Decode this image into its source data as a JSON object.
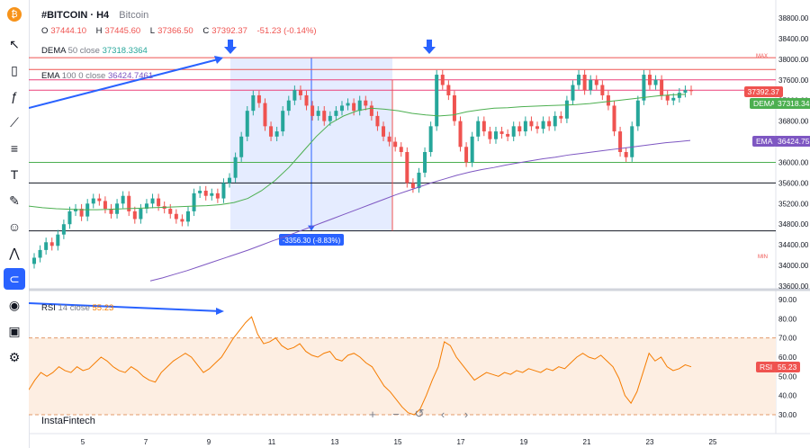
{
  "symbol": {
    "name": "#BITCOIN · H4",
    "description": "Bitcoin"
  },
  "ohlc": {
    "o_label": "O",
    "o": "37444.10",
    "h_label": "H",
    "h": "37445.60",
    "l_label": "L",
    "l": "37366.50",
    "c_label": "C",
    "c": "37392.37",
    "change": "-51.23 (-0.14%)"
  },
  "indicators": {
    "dema": {
      "label": "DEMA",
      "params": "50 close",
      "value": "37318.3364",
      "badge": "37318.34",
      "badge_label": "DEMA"
    },
    "ema": {
      "label": "EMA",
      "params": "100 0 close",
      "value": "36424.7461",
      "badge": "36424.75",
      "badge_label": "EMA"
    },
    "rsi": {
      "label": "RSI",
      "params": "14 close",
      "value": "55.23",
      "badge": "55.23",
      "badge_label": "RSI"
    }
  },
  "last_price": "37392.37",
  "measure_label": "-3356.30 (-8.83%)",
  "max_label": "MAX",
  "min_label": "MIN",
  "brand": "InstaFintech",
  "colors": {
    "up": "#26a69a",
    "down": "#ef5350",
    "dema": "#4caf50",
    "ema": "#7e57c2",
    "rsi": "#f57c00",
    "accent": "#2962ff"
  },
  "toolbar_icons": [
    "bitcoin-logo-icon",
    "cursor-icon",
    "candle-style-icon",
    "formula-icon",
    "trend-tools-icon",
    "fib-icon",
    "text-icon",
    "brush-icon",
    "emoji-icon",
    "patterns-icon",
    "magnet-icon",
    "eye-icon",
    "lock-icon",
    "settings-icon"
  ],
  "nav_icons": [
    "zoom-in-icon",
    "zoom-out-icon",
    "reset-icon",
    "scroll-left-icon",
    "scroll-right-icon"
  ],
  "chart_data": {
    "type": "candlestick",
    "price_axis": {
      "min": 33600,
      "max": 38800,
      "ticks": [
        "33600.00",
        "34000.00",
        "34400.00",
        "34800.00",
        "35200.00",
        "35600.00",
        "36000.00",
        "36400.00",
        "36800.00",
        "37200.00",
        "37600.00",
        "38000.00",
        "38400.00",
        "38800.00"
      ]
    },
    "rsi_axis": {
      "min": 30,
      "max": 90,
      "ticks": [
        "30.00",
        "40.00",
        "50.00",
        "60.00",
        "70.00",
        "80.00",
        "90.00"
      ],
      "bands": [
        30,
        70
      ]
    },
    "x_labels": [
      "5",
      "7",
      "9",
      "11",
      "13",
      "15",
      "17",
      "19",
      "21",
      "23",
      "25"
    ],
    "horizontal_levels": [
      38030,
      37800,
      37600,
      37400,
      36000,
      35600,
      34670
    ],
    "candles_close": [
      34150,
      34300,
      34450,
      34380,
      34600,
      34800,
      35050,
      35100,
      34950,
      35200,
      35300,
      35250,
      35100,
      35000,
      35200,
      35350,
      35050,
      34900,
      35100,
      35200,
      35300,
      35150,
      35100,
      35000,
      34900,
      34850,
      35050,
      35400,
      35450,
      35350,
      35400,
      35300,
      35600,
      35700,
      36100,
      36500,
      37000,
      37300,
      37150,
      36700,
      36500,
      36600,
      37000,
      37200,
      37400,
      37300,
      37100,
      36900,
      37000,
      36800,
      36900,
      37000,
      37100,
      37150,
      37000,
      37200,
      37100,
      36900,
      36700,
      36500,
      36400,
      36300,
      36200,
      35600,
      35500,
      35800,
      36200,
      36700,
      37700,
      37500,
      37300,
      36800,
      36300,
      36000,
      36500,
      36800,
      36600,
      36450,
      36600,
      36550,
      36500,
      36700,
      36600,
      36800,
      36700,
      36650,
      36800,
      36700,
      36900,
      36850,
      37200,
      37500,
      37700,
      37400,
      37600,
      37500,
      37300,
      37100,
      36600,
      36200,
      36100,
      36700,
      37200,
      37700,
      37500,
      37600,
      37300,
      37200,
      37250,
      37350,
      37400,
      37392
    ],
    "dema_values": [
      35150,
      35120,
      35100,
      35090,
      35080,
      35080,
      35090,
      35100,
      35110,
      35120,
      35130,
      35140,
      35150,
      35160,
      35180,
      35220,
      35300,
      35450,
      35650,
      35900,
      36200,
      36500,
      36750,
      36900,
      37000,
      37050,
      37030,
      37000,
      36950,
      36920,
      36900,
      36920,
      36980,
      37020,
      37050,
      37060,
      37080,
      37090,
      37100,
      37110,
      37120,
      37140,
      37170,
      37200,
      37230,
      37260,
      37290,
      37310,
      37318
    ],
    "ema_values": [
      33700,
      33760,
      33830,
      33900,
      33980,
      34060,
      34140,
      34220,
      34300,
      34390,
      34480,
      34560,
      34650,
      34740,
      34830,
      34920,
      35010,
      35100,
      35190,
      35280,
      35370,
      35450,
      35530,
      35610,
      35680,
      35750,
      35810,
      35860,
      35900,
      35950,
      35990,
      36030,
      36070,
      36100,
      36140,
      36170,
      36200,
      36230,
      36260,
      36290,
      36320,
      36350,
      36380,
      36400,
      36425
    ],
    "rsi_values": [
      43,
      48,
      52,
      50,
      52,
      55,
      53,
      52,
      55,
      53,
      54,
      57,
      60,
      58,
      55,
      53,
      52,
      55,
      53,
      50,
      48,
      47,
      52,
      55,
      58,
      60,
      62,
      60,
      56,
      52,
      54,
      57,
      60,
      65,
      70,
      74,
      78,
      81,
      72,
      67,
      68,
      70,
      66,
      64,
      65,
      67,
      63,
      61,
      60,
      62,
      63,
      59,
      58,
      61,
      62,
      60,
      57,
      55,
      50,
      45,
      42,
      38,
      34,
      31,
      30,
      33,
      40,
      48,
      55,
      68,
      66,
      60,
      56,
      52,
      48,
      50,
      52,
      51,
      50,
      52,
      51,
      53,
      52,
      54,
      53,
      52,
      54,
      53,
      55,
      54,
      57,
      60,
      62,
      60,
      59,
      61,
      58,
      55,
      49,
      40,
      36,
      42,
      52,
      62,
      58,
      60,
      55,
      53,
      54,
      56,
      55
    ]
  }
}
